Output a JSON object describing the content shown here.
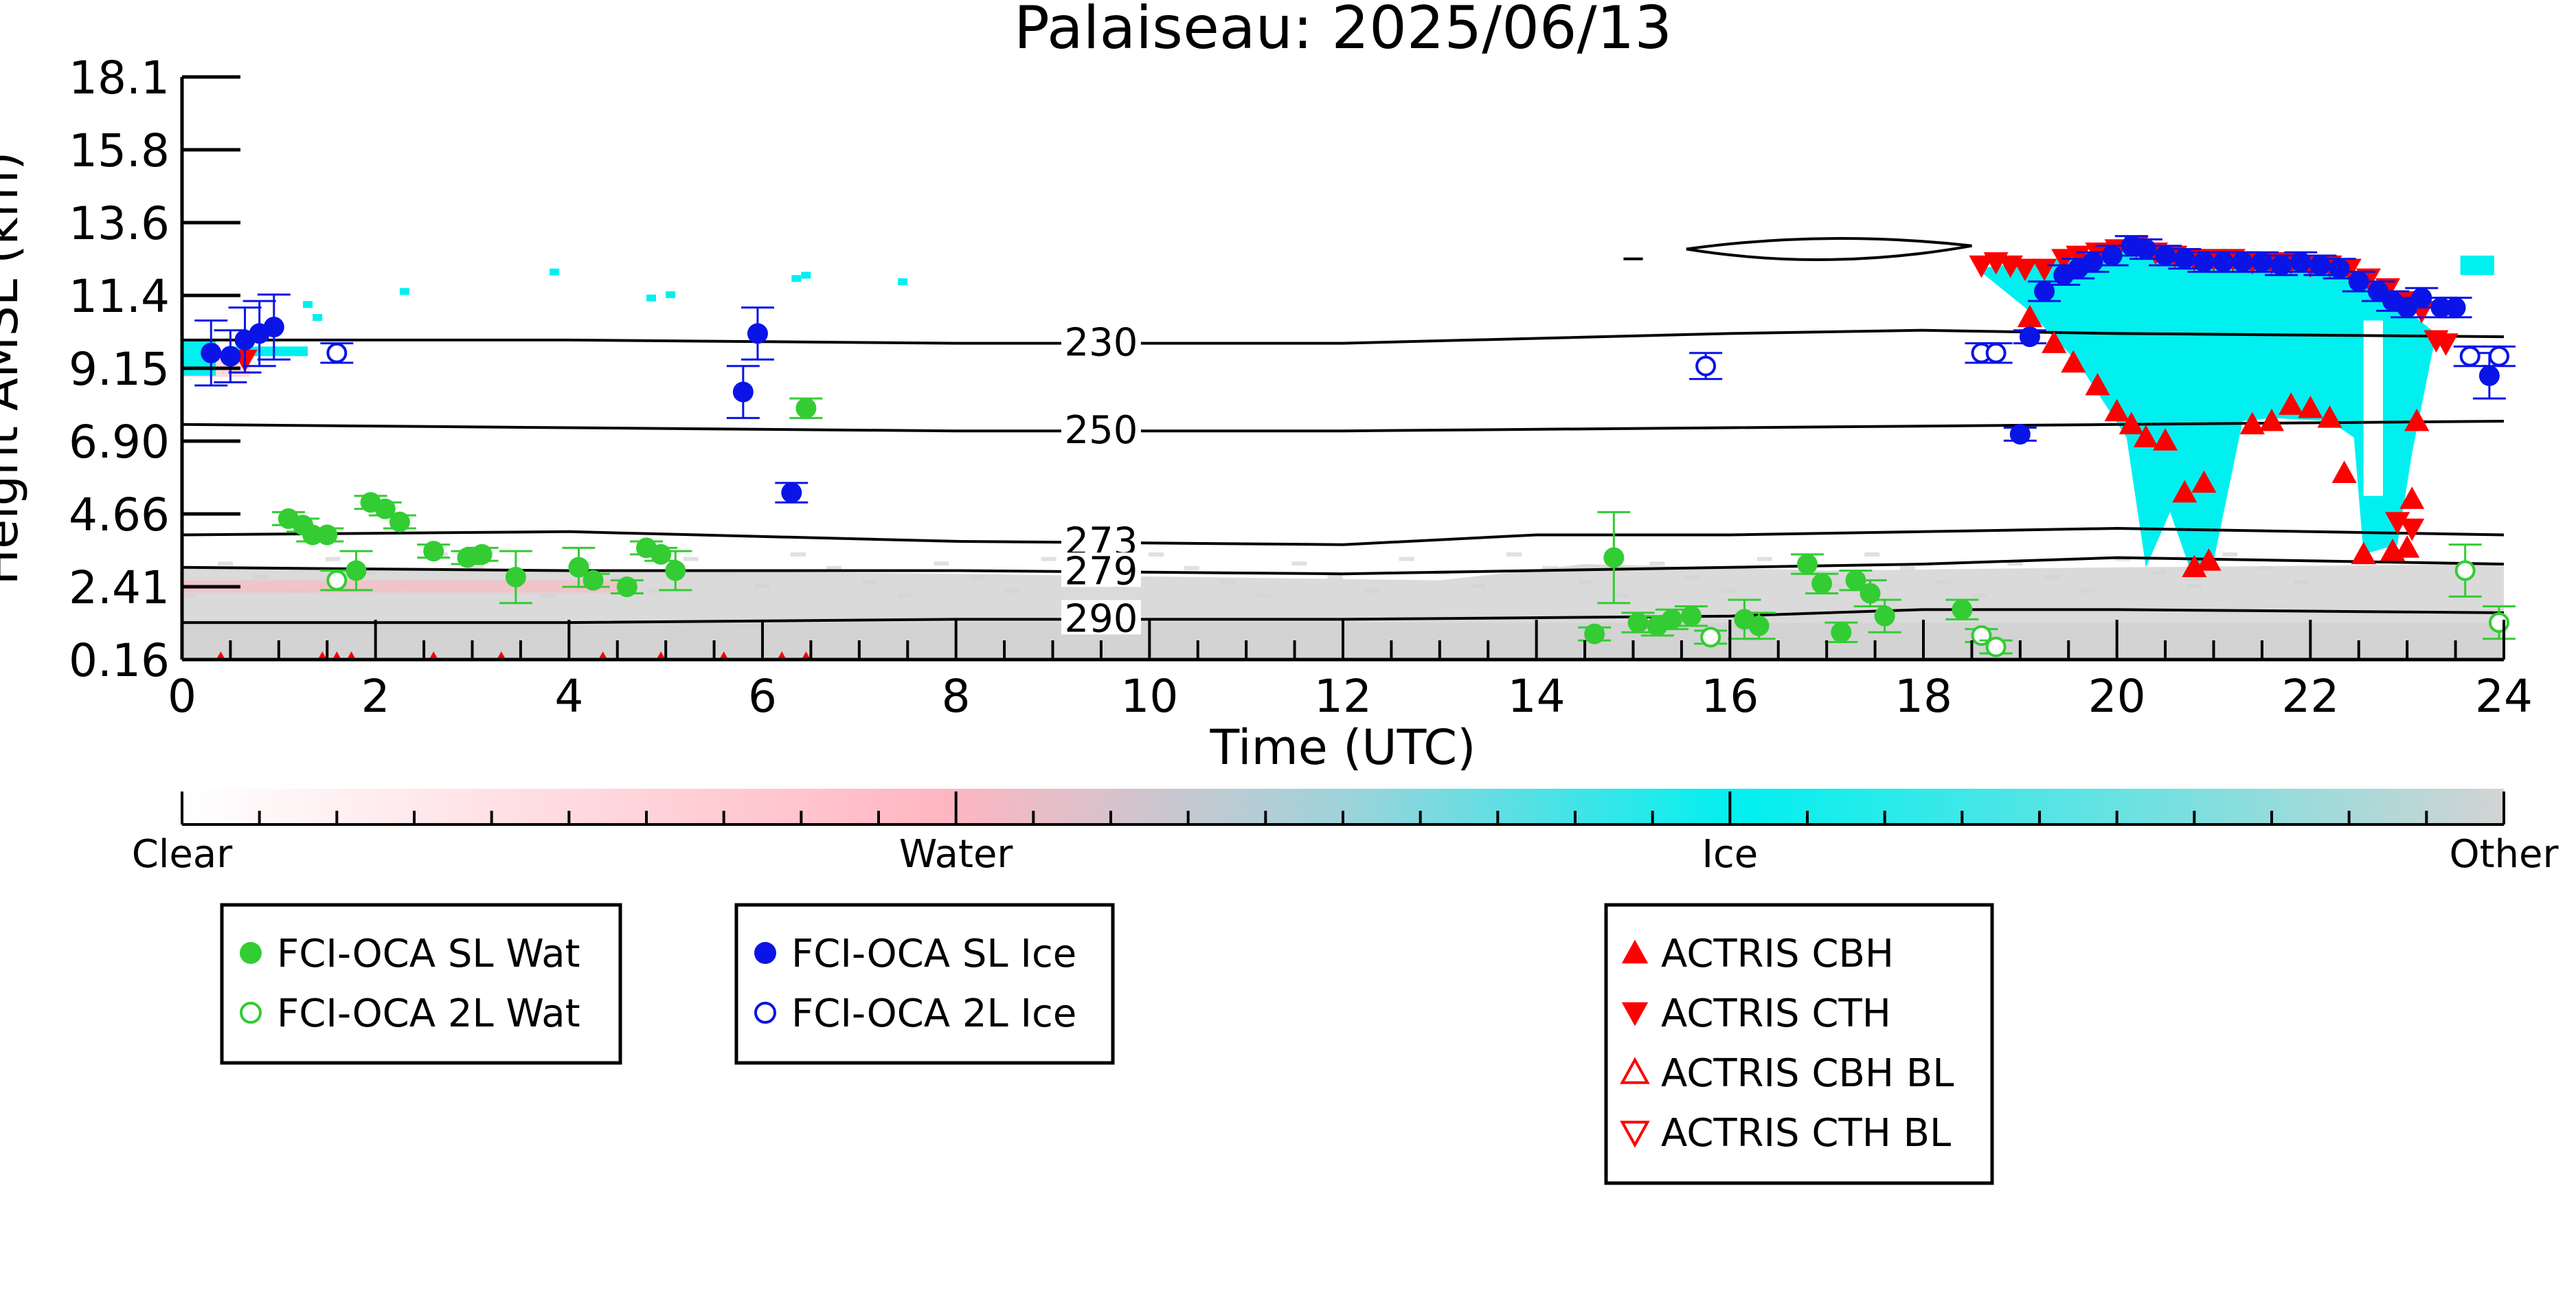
{
  "chart_data": {
    "type": "scatter",
    "title": "Palaiseau: 2025/06/13",
    "xlabel": "Time (UTC)",
    "ylabel": "Height AMSL (km)",
    "xlim": [
      0,
      24
    ],
    "ylim": [
      0.16,
      18.1
    ],
    "x_ticks": [
      "0",
      "2",
      "4",
      "6",
      "8",
      "10",
      "12",
      "14",
      "16",
      "18",
      "20",
      "22",
      "24"
    ],
    "y_ticks": [
      "0.16",
      "2.41",
      "4.66",
      "6.90",
      "9.15",
      "11.4",
      "13.6",
      "15.8",
      "18.1"
    ],
    "colorbar": {
      "labels": [
        "Clear",
        "Water",
        "Ice",
        "Other"
      ],
      "colors": {
        "Clear": "#ffffff",
        "Water": "#ffb6c1",
        "Ice": "#00f0f0",
        "Other": "#d3d3d3"
      }
    },
    "temperature_contours": [
      {
        "label": "230",
        "points": [
          [
            0,
            10.0
          ],
          [
            4,
            10.0
          ],
          [
            8,
            9.9
          ],
          [
            12,
            9.9
          ],
          [
            16,
            10.2
          ],
          [
            18,
            10.3
          ],
          [
            20,
            10.2
          ],
          [
            24,
            10.1
          ]
        ]
      },
      {
        "label": "250",
        "points": [
          [
            0,
            7.4
          ],
          [
            4,
            7.3
          ],
          [
            8,
            7.2
          ],
          [
            12,
            7.2
          ],
          [
            16,
            7.3
          ],
          [
            20,
            7.4
          ],
          [
            24,
            7.5
          ]
        ]
      },
      {
        "label": "273",
        "points": [
          [
            0,
            4.0
          ],
          [
            4,
            4.1
          ],
          [
            8,
            3.8
          ],
          [
            12,
            3.7
          ],
          [
            14,
            4.0
          ],
          [
            16,
            4.0
          ],
          [
            20,
            4.2
          ],
          [
            24,
            4.0
          ]
        ]
      },
      {
        "label": "279",
        "points": [
          [
            0,
            3.0
          ],
          [
            4,
            2.9
          ],
          [
            8,
            2.9
          ],
          [
            12,
            2.8
          ],
          [
            16,
            3.0
          ],
          [
            18,
            3.1
          ],
          [
            20,
            3.3
          ],
          [
            24,
            3.1
          ]
        ]
      },
      {
        "label": "290",
        "points": [
          [
            0,
            1.3
          ],
          [
            4,
            1.3
          ],
          [
            8,
            1.4
          ],
          [
            12,
            1.4
          ],
          [
            16,
            1.5
          ],
          [
            18,
            1.7
          ],
          [
            20,
            1.7
          ],
          [
            24,
            1.6
          ]
        ]
      }
    ],
    "series": [
      {
        "name": "FCI-OCA SL Wat",
        "color": "#33cc33",
        "marker": "circle-filled",
        "points": [
          [
            1.1,
            4.5,
            0.2
          ],
          [
            1.25,
            4.3,
            0.2
          ],
          [
            1.35,
            4.0,
            0.2
          ],
          [
            1.5,
            4.0,
            0.2
          ],
          [
            1.8,
            2.9,
            0.6
          ],
          [
            1.95,
            5.0,
            0.2
          ],
          [
            2.1,
            4.8,
            0.2
          ],
          [
            2.25,
            4.4,
            0.2
          ],
          [
            2.6,
            3.5,
            0.2
          ],
          [
            2.95,
            3.3,
            0.2
          ],
          [
            3.1,
            3.4,
            0.2
          ],
          [
            3.45,
            2.7,
            0.8
          ],
          [
            4.1,
            3.0,
            0.6
          ],
          [
            4.25,
            2.6,
            0.2
          ],
          [
            4.6,
            2.4,
            0.2
          ],
          [
            4.8,
            3.6,
            0.2
          ],
          [
            4.95,
            3.4,
            0.2
          ],
          [
            5.1,
            2.9,
            0.6
          ],
          [
            6.45,
            7.9,
            0.3
          ],
          [
            14.6,
            0.95,
            0.2
          ],
          [
            14.8,
            3.3,
            1.4
          ],
          [
            15.05,
            1.3,
            0.3
          ],
          [
            15.25,
            1.2,
            0.3
          ],
          [
            15.4,
            1.4,
            0.3
          ],
          [
            15.6,
            1.5,
            0.3
          ],
          [
            16.15,
            1.4,
            0.6
          ],
          [
            16.3,
            1.2,
            0.4
          ],
          [
            16.8,
            3.1,
            0.3
          ],
          [
            16.95,
            2.5,
            0.3
          ],
          [
            17.15,
            1.0,
            0.3
          ],
          [
            17.3,
            2.6,
            0.3
          ],
          [
            17.45,
            2.2,
            0.4
          ],
          [
            17.6,
            1.5,
            0.5
          ],
          [
            18.4,
            1.7,
            0.3
          ]
        ]
      },
      {
        "name": "FCI-OCA 2L Wat",
        "color": "#33cc33",
        "marker": "circle-open",
        "points": [
          [
            1.6,
            2.6,
            0.3
          ],
          [
            15.8,
            0.85,
            0.2
          ],
          [
            18.6,
            0.9,
            0.2
          ],
          [
            18.75,
            0.55,
            0.2
          ],
          [
            23.6,
            2.9,
            0.8
          ],
          [
            23.95,
            1.3,
            0.5
          ]
        ]
      },
      {
        "name": "FCI-OCA SL Ice",
        "color": "#0a14e6",
        "marker": "circle-filled",
        "points": [
          [
            0.3,
            9.6,
            1.0
          ],
          [
            0.5,
            9.5,
            0.8
          ],
          [
            0.65,
            10.0,
            1.0
          ],
          [
            0.8,
            10.2,
            1.0
          ],
          [
            0.95,
            10.4,
            1.0
          ],
          [
            5.8,
            8.4,
            0.8
          ],
          [
            5.95,
            10.2,
            0.8
          ],
          [
            6.3,
            5.3,
            0.3
          ],
          [
            19.0,
            7.1,
            0.2
          ],
          [
            19.1,
            10.1,
            0.2
          ],
          [
            19.25,
            11.5,
            0.3
          ],
          [
            19.45,
            12.0,
            0.3
          ],
          [
            19.6,
            12.2,
            0.3
          ],
          [
            19.75,
            12.4,
            0.3
          ],
          [
            19.95,
            12.6,
            0.3
          ],
          [
            20.15,
            12.9,
            0.3
          ],
          [
            20.3,
            12.8,
            0.3
          ],
          [
            20.5,
            12.6,
            0.3
          ],
          [
            20.7,
            12.5,
            0.3
          ],
          [
            20.9,
            12.4,
            0.3
          ],
          [
            21.1,
            12.4,
            0.3
          ],
          [
            21.3,
            12.4,
            0.3
          ],
          [
            21.5,
            12.4,
            0.3
          ],
          [
            21.7,
            12.3,
            0.3
          ],
          [
            21.9,
            12.4,
            0.3
          ],
          [
            22.1,
            12.3,
            0.3
          ],
          [
            22.3,
            12.2,
            0.3
          ],
          [
            22.5,
            11.8,
            0.3
          ],
          [
            22.7,
            11.5,
            0.3
          ],
          [
            22.85,
            11.2,
            0.3
          ],
          [
            23.0,
            11.0,
            0.3
          ],
          [
            23.15,
            11.3,
            0.3
          ],
          [
            23.35,
            11.0,
            0.3
          ],
          [
            23.5,
            11.0,
            0.3
          ],
          [
            23.85,
            8.9,
            0.7
          ]
        ]
      },
      {
        "name": "FCI-OCA 2L Ice",
        "color": "#0a14e6",
        "marker": "circle-open",
        "points": [
          [
            1.6,
            9.6,
            0.3
          ],
          [
            15.75,
            9.2,
            0.4
          ],
          [
            18.6,
            9.6,
            0.3
          ],
          [
            18.75,
            9.6,
            0.3
          ],
          [
            23.65,
            9.5,
            0.3
          ],
          [
            23.95,
            9.5,
            0.3
          ]
        ]
      },
      {
        "name": "ACTRIS CBH",
        "color": "#ff0000",
        "marker": "triangle-up-filled",
        "points": [
          [
            19.1,
            10.7
          ],
          [
            19.35,
            9.9
          ],
          [
            19.55,
            9.3
          ],
          [
            19.8,
            8.6
          ],
          [
            20.0,
            7.8
          ],
          [
            20.15,
            7.4
          ],
          [
            20.3,
            7.0
          ],
          [
            20.5,
            6.9
          ],
          [
            20.7,
            5.3
          ],
          [
            20.9,
            5.6
          ],
          [
            20.8,
            3.0
          ],
          [
            20.95,
            3.2
          ],
          [
            21.4,
            7.4
          ],
          [
            21.6,
            7.5
          ],
          [
            21.8,
            8.0
          ],
          [
            22.0,
            7.9
          ],
          [
            22.2,
            7.6
          ],
          [
            22.35,
            5.9
          ],
          [
            22.55,
            3.4
          ],
          [
            22.85,
            3.5
          ],
          [
            23.0,
            3.6
          ],
          [
            23.05,
            5.1
          ],
          [
            23.1,
            7.5
          ]
        ]
      },
      {
        "name": "ACTRIS CTH",
        "color": "#ff0000",
        "marker": "triangle-down-filled",
        "points": [
          [
            0.65,
            9.4
          ],
          [
            18.6,
            12.3
          ],
          [
            18.75,
            12.4
          ],
          [
            18.9,
            12.3
          ],
          [
            19.05,
            12.2
          ],
          [
            19.25,
            12.2
          ],
          [
            19.45,
            12.5
          ],
          [
            19.6,
            12.6
          ],
          [
            19.8,
            12.7
          ],
          [
            20.0,
            12.8
          ],
          [
            20.2,
            12.9
          ],
          [
            20.4,
            12.7
          ],
          [
            20.6,
            12.6
          ],
          [
            20.8,
            12.5
          ],
          [
            21.0,
            12.5
          ],
          [
            21.2,
            12.5
          ],
          [
            21.4,
            12.4
          ],
          [
            21.6,
            12.4
          ],
          [
            21.8,
            12.4
          ],
          [
            22.0,
            12.3
          ],
          [
            22.2,
            12.3
          ],
          [
            22.4,
            12.2
          ],
          [
            22.6,
            11.9
          ],
          [
            22.8,
            11.6
          ],
          [
            23.0,
            11.2
          ],
          [
            23.15,
            10.9
          ],
          [
            23.3,
            10.0
          ],
          [
            23.4,
            9.9
          ],
          [
            22.9,
            4.4
          ],
          [
            23.05,
            4.2
          ]
        ]
      },
      {
        "name": "ACTRIS CBH BL",
        "color": "#ff0000",
        "marker": "triangle-up-open",
        "points": []
      },
      {
        "name": "ACTRIS CTH BL",
        "color": "#ff0000",
        "marker": "triangle-down-open",
        "points": []
      }
    ],
    "legend": {
      "placement": "bottom",
      "groups": [
        [
          0,
          1
        ],
        [
          2,
          3
        ],
        [
          4,
          5,
          6,
          7
        ]
      ]
    },
    "grid": false
  }
}
